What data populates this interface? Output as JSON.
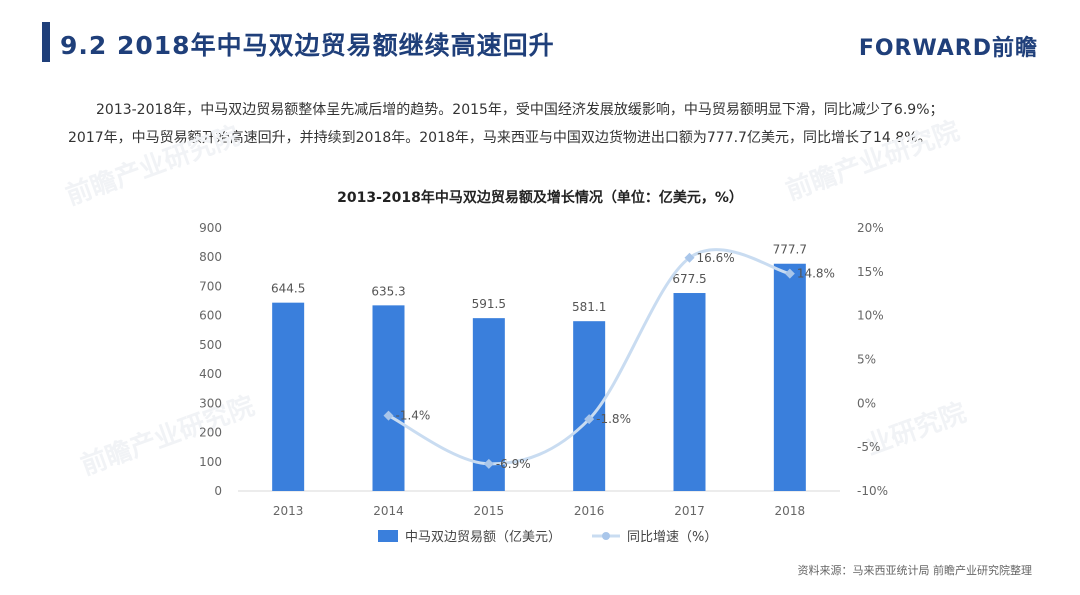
{
  "header": {
    "title": "9.2 2018年中马双边贸易额继续高速回升",
    "brand": "FORWARD前瞻"
  },
  "summary": {
    "line1": "2013-2018年，中马双边贸易额整体呈先减后增的趋势。2015年，受中国经济发展放缓影响，中马贸易额明显下滑，同比减少了6.9%；",
    "line2": "2017年，中马贸易额开始高速回升，并持续到2018年。2018年，马来西亚与中国双边货物进出口额为777.7亿美元，同比增长了14.8%。"
  },
  "watermark": {
    "text1": "前瞻产业研究院",
    "text2": "业研究院"
  },
  "chart_data": {
    "type": "bar",
    "title": "2013-2018年中马双边贸易额及增长情况（单位：亿美元，%）",
    "categories": [
      "2013",
      "2014",
      "2015",
      "2016",
      "2017",
      "2018"
    ],
    "series": [
      {
        "name": "中马双边贸易额（亿美元）",
        "type": "bar",
        "axis": "left",
        "values": [
          644.5,
          635.3,
          591.5,
          581.1,
          677.5,
          777.7
        ],
        "labels": [
          "644.5",
          "635.3",
          "591.5",
          "581.1",
          "677.5",
          "777.7"
        ]
      },
      {
        "name": "同比增速（%）",
        "type": "line",
        "axis": "right",
        "values": [
          null,
          -1.4,
          -6.9,
          -1.8,
          16.6,
          14.8
        ],
        "labels": [
          "",
          "-1.4%",
          "-6.9%",
          "-1.8%",
          "16.6%",
          "14.8%"
        ]
      }
    ],
    "y_left": {
      "ylim": [
        0,
        900
      ],
      "ticks": [
        "0",
        "100",
        "200",
        "300",
        "400",
        "500",
        "600",
        "700",
        "800",
        "900"
      ]
    },
    "y_right": {
      "ylim": [
        -10,
        20
      ],
      "ticks": [
        "-10%",
        "-5%",
        "0%",
        "5%",
        "10%",
        "15%",
        "20%"
      ]
    },
    "colors": {
      "bar": "#3a7fdc",
      "line": "#c9dcf1",
      "marker": "#a9c6ea"
    },
    "legend": "bottom-center"
  },
  "source": "资料来源：马来西亚统计局  前瞻产业研究院整理"
}
